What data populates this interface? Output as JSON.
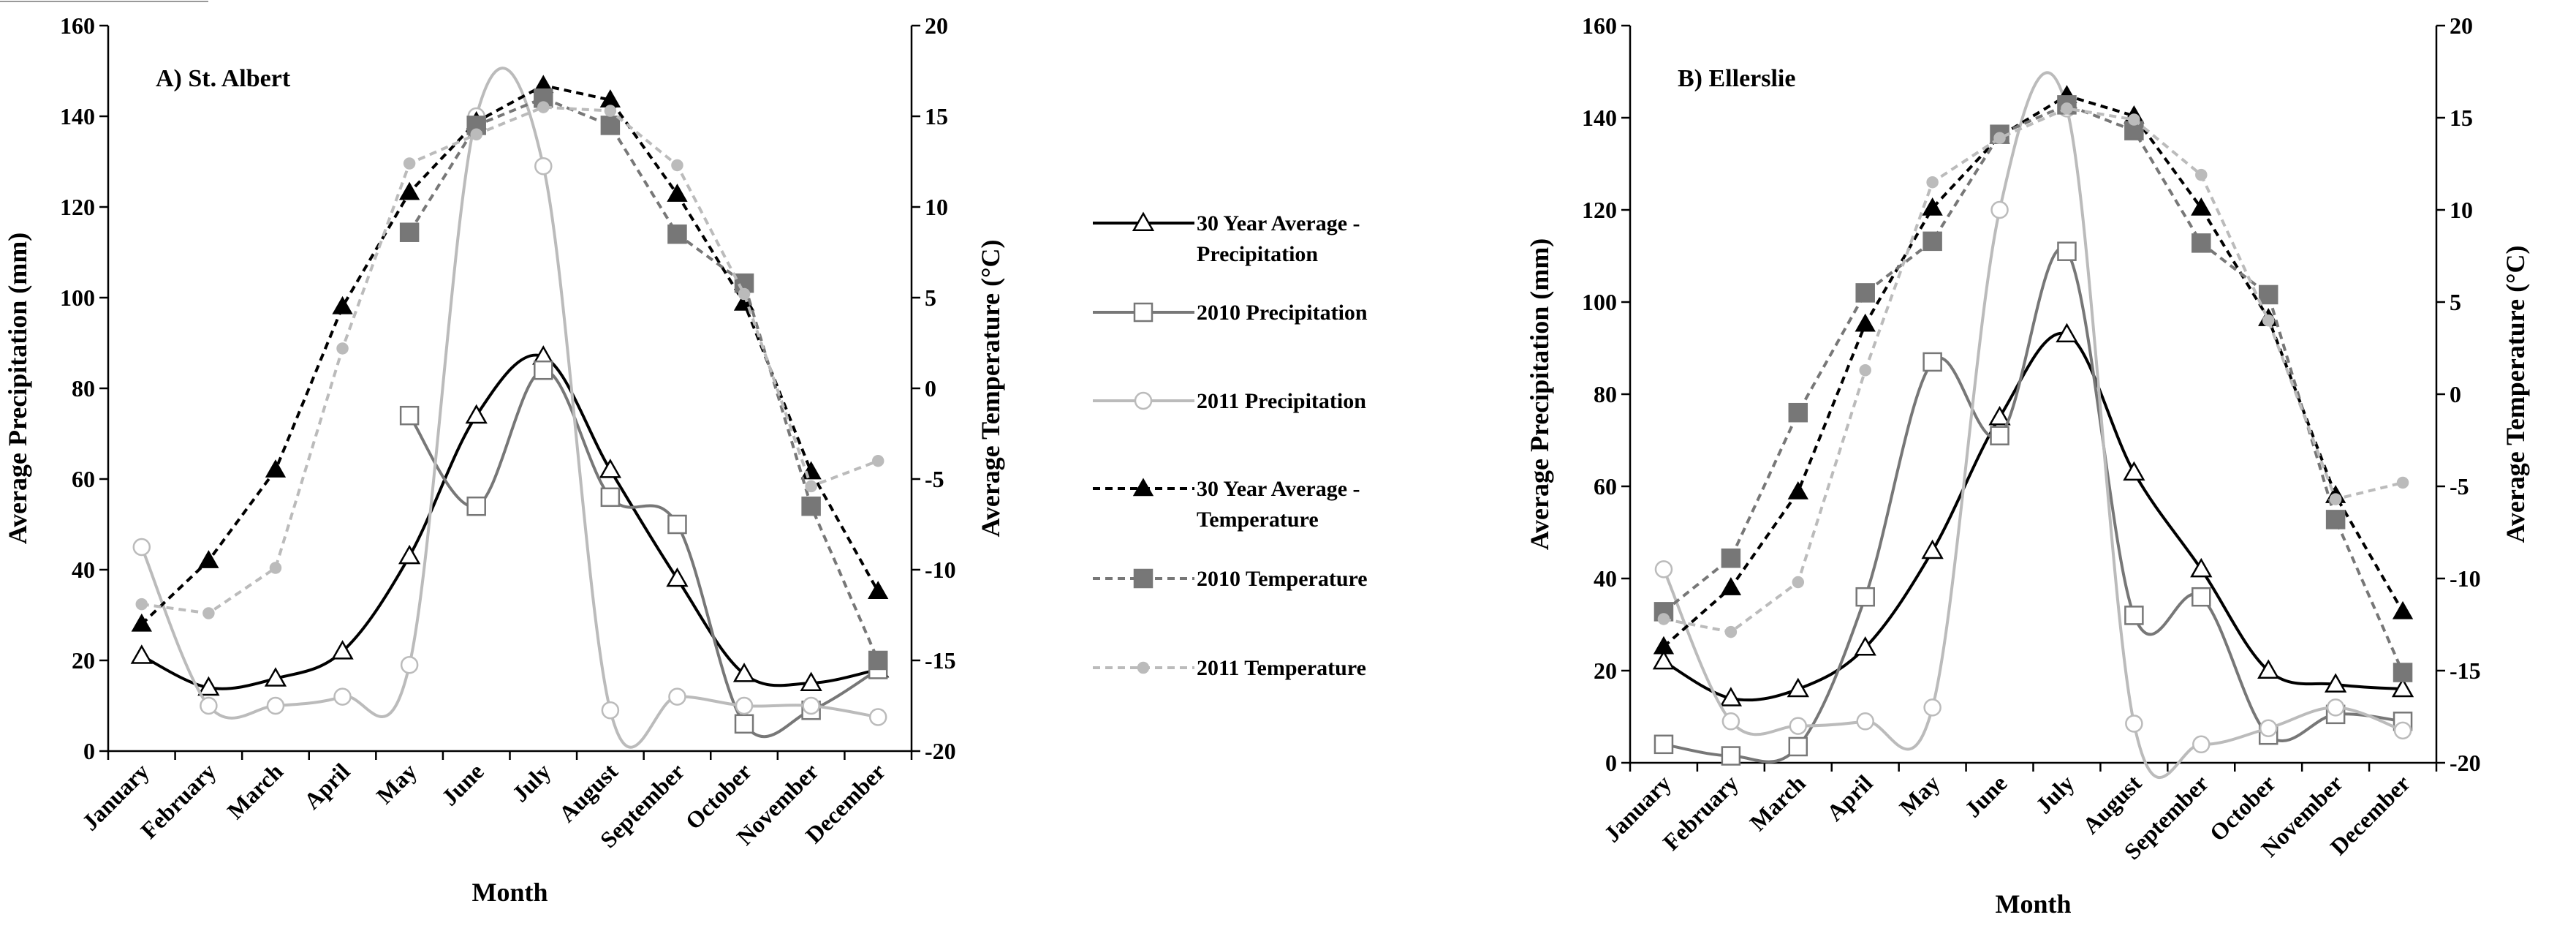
{
  "chart_data": {
    "type": "line",
    "months": [
      "January",
      "February",
      "March",
      "April",
      "May",
      "June",
      "July",
      "August",
      "September",
      "October",
      "November",
      "December"
    ],
    "legend": [
      {
        "key": "p30",
        "label": [
          "30 Year Average -",
          "Precipitation"
        ]
      },
      {
        "key": "p2010",
        "label": [
          "2010 Precipitation"
        ]
      },
      {
        "key": "p2011",
        "label": [
          "2011 Precipitation"
        ]
      },
      {
        "key": "t30",
        "label": [
          "30 Year Average -",
          "Temperature"
        ]
      },
      {
        "key": "t2010",
        "label": [
          "2010 Temperature"
        ]
      },
      {
        "key": "t2011",
        "label": [
          "2011 Temperature"
        ]
      }
    ],
    "styles": {
      "p30": {
        "color": "#000000",
        "dash": "",
        "width": 4,
        "marker": "triangle-open",
        "curve": true
      },
      "p2010": {
        "color": "#777777",
        "dash": "",
        "width": 4,
        "marker": "square-open",
        "curve": true
      },
      "p2011": {
        "color": "#bbbbbb",
        "dash": "",
        "width": 4,
        "marker": "circle-open",
        "curve": true
      },
      "t30": {
        "color": "#000000",
        "dash": "10,7",
        "width": 4,
        "marker": "triangle-filled",
        "curve": false
      },
      "t2010": {
        "color": "#777777",
        "dash": "10,7",
        "width": 4,
        "marker": "square-filled",
        "curve": false
      },
      "t2011": {
        "color": "#bbbbbb",
        "dash": "10,7",
        "width": 4,
        "marker": "circle-filled",
        "curve": false
      }
    },
    "panels": [
      {
        "title": "A) St. Albert",
        "xlabel": "Month",
        "ylabel_left": "Average Precipitation (mm)",
        "ylabel_right": "Average Temperature (°C)",
        "ylim_left": [
          0,
          160
        ],
        "yticks_left": [
          0,
          20,
          40,
          60,
          80,
          100,
          120,
          140,
          160
        ],
        "ylim_right": [
          -20,
          20
        ],
        "yticks_right": [
          -20,
          -15,
          -10,
          -5,
          0,
          5,
          10,
          15,
          20
        ],
        "series": {
          "p30": [
            21,
            14,
            16,
            22,
            43,
            74,
            87,
            62,
            38,
            17,
            15,
            18
          ],
          "p2010": [
            null,
            null,
            null,
            null,
            74,
            54,
            84,
            56,
            50,
            6,
            9,
            18
          ],
          "p2011": [
            45,
            10,
            10,
            12,
            19,
            140,
            129,
            9,
            12,
            10,
            10,
            7.5
          ],
          "t30": [
            -13,
            -9.5,
            -4.5,
            4.5,
            10.8,
            14.7,
            16.7,
            15.9,
            10.7,
            4.7,
            -4.6,
            -11.2
          ],
          "t2010": [
            null,
            null,
            null,
            null,
            8.6,
            14.5,
            16,
            14.5,
            8.5,
            5.8,
            -6.5,
            -15
          ],
          "t2011": [
            -11.9,
            -12.4,
            -9.9,
            2.2,
            12.4,
            14,
            15.5,
            15.3,
            12.3,
            5.2,
            -5.4,
            -4
          ]
        }
      },
      {
        "title": "B) Ellerslie",
        "xlabel": "Month",
        "ylabel_left": "Average Precipitation (mm)",
        "ylabel_right": "Average Temperature (°C)",
        "ylim_left": [
          0,
          160
        ],
        "yticks_left": [
          0,
          20,
          40,
          60,
          80,
          100,
          120,
          140,
          160
        ],
        "ylim_right": [
          -20,
          20
        ],
        "yticks_right": [
          -20,
          -15,
          -10,
          -5,
          0,
          5,
          10,
          15,
          20
        ],
        "series": {
          "p30": [
            22,
            14,
            16,
            25,
            46,
            75,
            93,
            63,
            42,
            20,
            17,
            16
          ],
          "p2010": [
            4,
            1.5,
            3.5,
            36,
            87,
            71,
            111,
            32,
            36,
            6,
            10.5,
            9
          ],
          "p2011": [
            42,
            9,
            8,
            9,
            12,
            120,
            142,
            8.5,
            4,
            7.5,
            12,
            7
          ],
          "t30": [
            -13.7,
            -10.5,
            -5.3,
            3.8,
            10.1,
            14,
            16.2,
            15.1,
            10.1,
            4.1,
            -5.5,
            -11.8
          ],
          "t2010": [
            -11.8,
            -8.9,
            -1,
            5.5,
            8.3,
            14.1,
            15.7,
            14.3,
            8.2,
            5.4,
            -6.8,
            -15.1
          ],
          "t2011": [
            -12.2,
            -12.9,
            -10.2,
            1.3,
            11.5,
            13.9,
            15.5,
            14.9,
            11.9,
            4,
            -5.7,
            -4.8
          ]
        }
      }
    ]
  }
}
